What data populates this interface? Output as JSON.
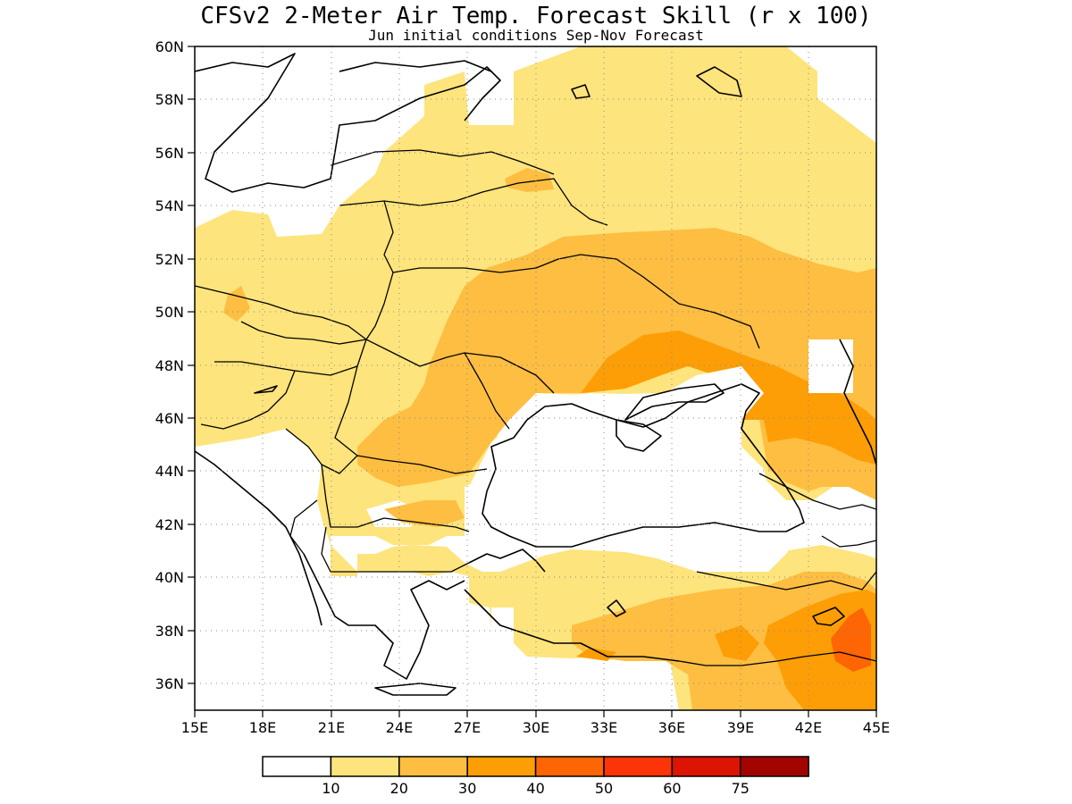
{
  "title": "CFSv2 2-Meter Air Temp. Forecast Skill (r x 100)",
  "subtitle": "Jun initial conditions  Sep-Nov Forecast",
  "lon_labels": [
    "15E",
    "18E",
    "21E",
    "24E",
    "27E",
    "30E",
    "33E",
    "36E",
    "39E",
    "42E",
    "45E"
  ],
  "lat_labels": [
    "36N",
    "38N",
    "40N",
    "42N",
    "44N",
    "46N",
    "48N",
    "50N",
    "52N",
    "54N",
    "56N",
    "58N",
    "60N"
  ],
  "map_extent": {
    "lon": [
      15,
      45
    ],
    "lat": [
      35,
      60
    ]
  },
  "grid": "dotted",
  "legend": {
    "labels": [
      "10",
      "20",
      "30",
      "40",
      "50",
      "60",
      "75"
    ],
    "colors": [
      "#ffffff",
      "#fee47c",
      "#fdbe42",
      "#fd9e06",
      "#fd6505",
      "#fd3407",
      "#dd1303",
      "#a20500"
    ]
  }
}
